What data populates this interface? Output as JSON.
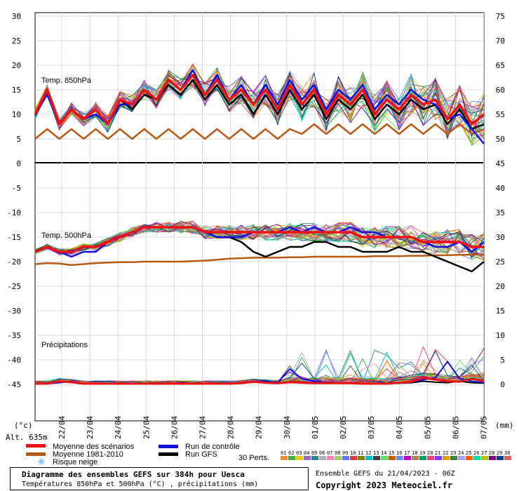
{
  "chart_data": {
    "type": "line",
    "header_title": "Diagramme des ensembles GEFS sur 384h pour Uesca",
    "header_subtitle": "Températures 850hPa et 500hPa (°C) , précipitations (mm)",
    "run_info": "Ensemble GEFS du 21/04/2023 - 06Z",
    "copyright": "Copyright 2023 Meteociel.fr",
    "altitude_label": "Alt. 635m",
    "left_unit": "(°c)",
    "right_unit": "(mm)",
    "x_dates": [
      "22/04",
      "23/04",
      "24/04",
      "25/04",
      "26/04",
      "27/04",
      "28/04",
      "29/04",
      "30/04",
      "01/05",
      "02/05",
      "03/05",
      "04/05",
      "05/05",
      "06/05",
      "07/05"
    ],
    "left_ticks": [
      "30",
      "25",
      "20",
      "15",
      "10",
      "5",
      "0",
      "-5",
      "-10",
      "-15",
      "-20",
      "-25",
      "-30",
      "-35",
      "-40",
      "-45"
    ],
    "right_ticks": [
      "75",
      "70",
      "65",
      "60",
      "55",
      "50",
      "45",
      "40",
      "35",
      "30",
      "25",
      "20",
      "15",
      "10",
      "5",
      "0"
    ],
    "panels": [
      {
        "label": "Temp. 850hPa"
      },
      {
        "label": "Temp. 500hPa"
      },
      {
        "label": "Précipitations"
      }
    ],
    "legend": [
      {
        "label": "Moyenne des scénarios",
        "color": "#ee1111"
      },
      {
        "label": "Moyenne 1981-2010",
        "color": "#b85a14"
      },
      {
        "label": "Risque neige",
        "color": "#7fc8ff",
        "icon": "snowflake-icon"
      },
      {
        "label": "Run de contrôle",
        "color": "#1010dd"
      },
      {
        "label": "Run GFS",
        "color": "#000000"
      }
    ],
    "perts_label": "30 Perts.",
    "perts": [
      "01",
      "02",
      "03",
      "04",
      "05",
      "06",
      "07",
      "08",
      "09",
      "10",
      "11",
      "12",
      "13",
      "14",
      "15",
      "16",
      "17",
      "18",
      "19",
      "20",
      "21",
      "22",
      "23",
      "24",
      "25",
      "26",
      "27",
      "28",
      "29",
      "30"
    ],
    "pert_colors": [
      "#f08a30",
      "#40b040",
      "#e8d000",
      "#9a6ac8",
      "#2a8a8a",
      "#b0b0b0",
      "#ff80c0",
      "#a0d060",
      "#7070ff",
      "#d04040",
      "#808000",
      "#00c0c0",
      "#404040",
      "#60e060",
      "#c06000",
      "#6090ff",
      "#c000c0",
      "#b08060",
      "#00a060",
      "#ff4080",
      "#8040ff",
      "#e0a000",
      "#408040",
      "#a0a0ff",
      "#ff6000",
      "#00e0a0",
      "#c0c000",
      "#800080",
      "#004080",
      "#e06060"
    ],
    "t850_mean": [
      10,
      15,
      8,
      11,
      9,
      11,
      8,
      13,
      12,
      15,
      13,
      17,
      15,
      18,
      14,
      17,
      13,
      15,
      12,
      15,
      11,
      16,
      12,
      15,
      10,
      14,
      12,
      15,
      10,
      13,
      11,
      14,
      12,
      13,
      9,
      12,
      8,
      10
    ],
    "t850_control": [
      10,
      14,
      8,
      11,
      9,
      10,
      8,
      12,
      12,
      15,
      13,
      17,
      15,
      19,
      14,
      18,
      13,
      16,
      12,
      16,
      12,
      17,
      13,
      16,
      11,
      15,
      13,
      16,
      11,
      14,
      12,
      15,
      13,
      12,
      9,
      10,
      7,
      4
    ],
    "t850_gfs": [
      10,
      15,
      8,
      11,
      9,
      11,
      8,
      13,
      11,
      14,
      13,
      16,
      14,
      17,
      13,
      16,
      12,
      14,
      10,
      14,
      10,
      15,
      11,
      14,
      9,
      13,
      11,
      14,
      9,
      12,
      10,
      13,
      11,
      12,
      8,
      11,
      7,
      8
    ],
    "t850_climo": [
      5,
      7,
      5,
      7,
      5,
      7,
      5,
      7,
      5,
      7,
      5,
      7,
      5,
      7,
      5,
      7,
      5,
      7,
      5,
      7,
      5,
      7,
      6,
      8,
      6,
      8,
      6,
      8,
      6,
      8,
      6,
      8,
      6,
      8,
      6,
      8,
      6,
      7
    ],
    "t500_mean": [
      -18,
      -17,
      -18,
      -18,
      -17,
      -17,
      -16,
      -15,
      -14,
      -13,
      -13,
      -13,
      -13,
      -13,
      -14,
      -14,
      -14,
      -14,
      -14,
      -14,
      -14,
      -14,
      -14,
      -14,
      -14,
      -14,
      -14,
      -15,
      -15,
      -15,
      -15,
      -15,
      -16,
      -16,
      -16,
      -16,
      -17,
      -17
    ],
    "t500_control": [
      -18,
      -17,
      -18,
      -19,
      -18,
      -18,
      -16,
      -15,
      -14,
      -13,
      -13,
      -13,
      -13,
      -13,
      -14,
      -15,
      -15,
      -15,
      -14,
      -14,
      -14,
      -13,
      -14,
      -13,
      -14,
      -14,
      -13,
      -14,
      -14,
      -15,
      -15,
      -15,
      -16,
      -17,
      -17,
      -16,
      -18,
      -16
    ],
    "t500_gfs": [
      -18,
      -17,
      -18,
      -18,
      -17,
      -17,
      -16,
      -15,
      -14,
      -13,
      -13,
      -13,
      -13,
      -13,
      -14,
      -15,
      -15,
      -16,
      -18,
      -19,
      -18,
      -17,
      -17,
      -16,
      -16,
      -17,
      -17,
      -18,
      -18,
      -18,
      -17,
      -18,
      -18,
      -19,
      -20,
      -21,
      -22,
      -20
    ],
    "t500_climo": [
      -20.5,
      -20.3,
      -20.4,
      -20.7,
      -20.5,
      -20.3,
      -20.2,
      -20.1,
      -20.1,
      -20.0,
      -20.0,
      -20.0,
      -20.0,
      -19.9,
      -19.8,
      -19.6,
      -19.4,
      -19.3,
      -19.2,
      -19.2,
      -19.2,
      -19.1,
      -19.1,
      -19.0,
      -19.0,
      -19.0,
      -19.0,
      -19.0,
      -18.9,
      -18.9,
      -18.9,
      -18.8,
      -18.8,
      -18.7,
      -18.7,
      -18.6,
      -18.6,
      -18.5
    ],
    "precip_mean": [
      0,
      0,
      0.5,
      0.3,
      0,
      0,
      0,
      0,
      0,
      0,
      0,
      0,
      0,
      0,
      0,
      0,
      0,
      0.1,
      0.4,
      0.2,
      0.1,
      0.3,
      0.2,
      0.1,
      0.1,
      0.1,
      0.1,
      0,
      0,
      0,
      0.2,
      0.4,
      1.2,
      0.8,
      0.5,
      0.4,
      1.0,
      0.5
    ],
    "precip_control": [
      0,
      0,
      0.2,
      0.5,
      0,
      0,
      0,
      0,
      0,
      0,
      0,
      0,
      0,
      0,
      0,
      0,
      0,
      0.1,
      0.5,
      0.5,
      0.2,
      3,
      1,
      0.5,
      0.2,
      0.1,
      0.1,
      0,
      0,
      0,
      0.1,
      0.3,
      0.8,
      1.2,
      4.5,
      1.0,
      0.5,
      0.2
    ],
    "precip_gfs": [
      0,
      0,
      0.3,
      0.4,
      0,
      0,
      0,
      0,
      0,
      0,
      0,
      0,
      0,
      0,
      0,
      0,
      0,
      0.1,
      0.3,
      0.5,
      0.1,
      0.4,
      0.3,
      0.2,
      0.2,
      0.1,
      0.1,
      0,
      0,
      0,
      0.1,
      0.2,
      0.5,
      0.3,
      0.2,
      0.5,
      0.2,
      0.1
    ]
  }
}
